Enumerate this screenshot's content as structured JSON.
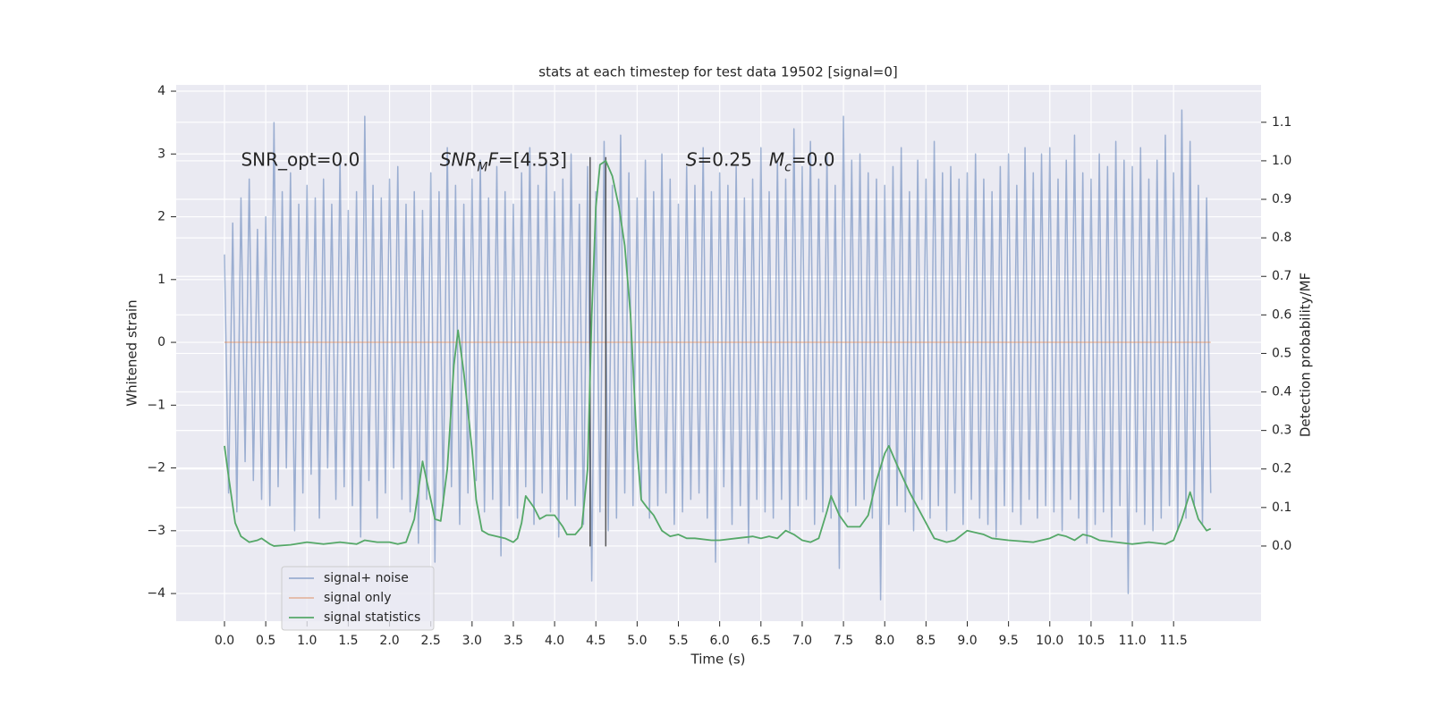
{
  "chart_data": {
    "type": "line",
    "title": "stats at each timestep for test data 19502 [signal=0]",
    "xlabel": "Time (s)",
    "ylabel": "Whitened strain",
    "y2label": "Detection probability/MF",
    "xlim": [
      -0.585,
      12.56
    ],
    "ylim": [
      -4.44,
      4.1
    ],
    "y2lim": [
      -0.195,
      1.197
    ],
    "xticks": [
      {
        "value": 0,
        "label": "0.0"
      },
      0.5,
      {
        "value": 1,
        "label": "1.0"
      },
      1.5,
      {
        "value": 2,
        "label": "2.0"
      },
      2.5,
      {
        "value": 3,
        "label": "3.0"
      },
      3.5,
      {
        "value": 4,
        "label": "4.0"
      },
      4.5,
      {
        "value": 5,
        "label": "5.0"
      },
      5.5,
      {
        "value": 6,
        "label": "6.0"
      },
      6.5,
      {
        "value": 7,
        "label": "7.0"
      },
      7.5,
      {
        "value": 8,
        "label": "8.0"
      },
      8.5,
      {
        "value": 9,
        "label": "9.0"
      },
      9.5,
      {
        "value": 10,
        "label": "10.0"
      },
      10.5,
      {
        "value": 11,
        "label": "11.0"
      },
      11.5
    ],
    "yticks": [
      {
        "value": -4,
        "label": "−4"
      },
      {
        "value": -3,
        "label": "−3"
      },
      {
        "value": -2,
        "label": "−2"
      },
      {
        "value": -1,
        "label": "−1"
      },
      0,
      1,
      2,
      3,
      4
    ],
    "y2ticks": [
      {
        "value": 0,
        "label": "0.0"
      },
      0.1,
      0.2,
      0.3,
      0.4,
      0.5,
      0.6,
      0.7,
      0.8,
      0.9,
      {
        "value": 1,
        "label": "1.0"
      },
      1.1
    ],
    "grid": true,
    "legend": "lower left",
    "series": [
      {
        "name": "signal+ noise",
        "color": "#4c72b0",
        "x": [
          0,
          0.05,
          0.1,
          0.15,
          0.2,
          0.25,
          0.3,
          0.35,
          0.4,
          0.45,
          0.5,
          0.55,
          0.6,
          0.65,
          0.7,
          0.75,
          0.8,
          0.85,
          0.9,
          0.95,
          1,
          1.05,
          1.1,
          1.15,
          1.2,
          1.25,
          1.3,
          1.35,
          1.4,
          1.45,
          1.5,
          1.55,
          1.6,
          1.65,
          1.7,
          1.75,
          1.8,
          1.85,
          1.9,
          1.95,
          2,
          2.05,
          2.1,
          2.15,
          2.2,
          2.25,
          2.3,
          2.35,
          2.4,
          2.45,
          2.5,
          2.55,
          2.6,
          2.65,
          2.7,
          2.75,
          2.8,
          2.85,
          2.9,
          2.95,
          3,
          3.05,
          3.1,
          3.15,
          3.2,
          3.25,
          3.3,
          3.35,
          3.4,
          3.45,
          3.5,
          3.55,
          3.6,
          3.65,
          3.7,
          3.75,
          3.8,
          3.85,
          3.9,
          3.95,
          4,
          4.05,
          4.1,
          4.15,
          4.2,
          4.25,
          4.3,
          4.35,
          4.4,
          4.45,
          4.5,
          4.55,
          4.6,
          4.65,
          4.7,
          4.75,
          4.8,
          4.85,
          4.9,
          4.95,
          5,
          5.05,
          5.1,
          5.15,
          5.2,
          5.25,
          5.3,
          5.35,
          5.4,
          5.45,
          5.5,
          5.55,
          5.6,
          5.65,
          5.7,
          5.75,
          5.8,
          5.85,
          5.9,
          5.95,
          6,
          6.05,
          6.1,
          6.15,
          6.2,
          6.25,
          6.3,
          6.35,
          6.4,
          6.45,
          6.5,
          6.55,
          6.6,
          6.65,
          6.7,
          6.75,
          6.8,
          6.85,
          6.9,
          6.95,
          7,
          7.05,
          7.1,
          7.15,
          7.2,
          7.25,
          7.3,
          7.35,
          7.4,
          7.45,
          7.5,
          7.55,
          7.6,
          7.65,
          7.7,
          7.75,
          7.8,
          7.85,
          7.9,
          7.95,
          8,
          8.05,
          8.1,
          8.15,
          8.2,
          8.25,
          8.3,
          8.35,
          8.4,
          8.45,
          8.5,
          8.55,
          8.6,
          8.65,
          8.7,
          8.75,
          8.8,
          8.85,
          8.9,
          8.95,
          9,
          9.05,
          9.1,
          9.15,
          9.2,
          9.25,
          9.3,
          9.35,
          9.4,
          9.45,
          9.5,
          9.55,
          9.6,
          9.65,
          9.7,
          9.75,
          9.8,
          9.85,
          9.9,
          9.95,
          10,
          10.05,
          10.1,
          10.15,
          10.2,
          10.25,
          10.3,
          10.35,
          10.4,
          10.45,
          10.5,
          10.55,
          10.6,
          10.65,
          10.7,
          10.75,
          10.8,
          10.85,
          10.9,
          10.95,
          11,
          11.05,
          11.1,
          11.15,
          11.2,
          11.25,
          11.3,
          11.35,
          11.4,
          11.45,
          11.5,
          11.55,
          11.6,
          11.65,
          11.7,
          11.75,
          11.8,
          11.85,
          11.9,
          11.95
        ],
        "values": [
          1.4,
          -2.4,
          1.9,
          -2.7,
          2.3,
          -1.9,
          2.6,
          -2.2,
          1.8,
          -2.5,
          2.0,
          -2.6,
          3.5,
          -2.3,
          2.4,
          -2.0,
          2.7,
          -3.0,
          2.2,
          -2.4,
          2.5,
          -2.1,
          2.3,
          -2.8,
          2.6,
          -2.0,
          2.2,
          -2.5,
          2.9,
          -2.3,
          2.1,
          -2.6,
          2.4,
          -3.1,
          3.6,
          -2.2,
          2.5,
          -2.8,
          2.3,
          -2.4,
          2.6,
          -2.0,
          2.8,
          -2.5,
          2.2,
          -2.7,
          2.4,
          -3.2,
          2.1,
          -2.5,
          2.7,
          -3.5,
          2.4,
          -2.6,
          3.1,
          -2.3,
          2.5,
          -2.9,
          2.2,
          -2.4,
          2.6,
          -2.2,
          2.9,
          -2.7,
          2.3,
          -2.5,
          2.8,
          -3.4,
          2.4,
          -2.6,
          2.2,
          -2.8,
          2.7,
          -2.3,
          3.1,
          -2.9,
          2.5,
          -2.4,
          2.9,
          -2.7,
          2.4,
          -3.1,
          2.6,
          -2.5,
          3.0,
          -2.6,
          2.2,
          -2.9,
          2.8,
          -3.8,
          2.4,
          -2.7,
          3.2,
          -3.0,
          2.5,
          -2.8,
          3.3,
          -2.4,
          2.7,
          -2.6,
          2.3,
          -2.5,
          2.9,
          -2.8,
          2.4,
          -2.6,
          3.0,
          -2.4,
          2.6,
          -2.9,
          2.2,
          -2.7,
          2.8,
          -2.5,
          2.5,
          -2.4,
          3.1,
          -2.8,
          2.4,
          -3.5,
          2.7,
          -2.3,
          2.5,
          -2.9,
          2.8,
          -2.6,
          2.3,
          -3.2,
          2.6,
          -2.5,
          3.1,
          -2.7,
          2.4,
          -2.8,
          2.9,
          -2.5,
          2.6,
          -3.0,
          3.4,
          -2.6,
          2.8,
          -2.5,
          3.2,
          -2.9,
          2.6,
          -2.7,
          3.0,
          -2.8,
          2.5,
          -3.6,
          3.6,
          -2.7,
          2.9,
          -2.6,
          3.0,
          -2.5,
          2.7,
          -2.8,
          2.6,
          -4.1,
          2.5,
          -2.9,
          2.8,
          -2.6,
          3.1,
          -2.7,
          2.4,
          -3.0,
          2.9,
          -2.5,
          2.6,
          -2.8,
          3.2,
          -2.6,
          2.7,
          -3.0,
          2.8,
          -2.4,
          2.6,
          -2.9,
          2.7,
          -2.5,
          3.0,
          -2.8,
          2.6,
          -2.9,
          2.4,
          -3.1,
          2.8,
          -2.6,
          3.0,
          -2.7,
          2.5,
          -2.9,
          3.1,
          -2.5,
          2.7,
          -2.8,
          3.0,
          -2.6,
          3.1,
          -2.7,
          2.6,
          -3.0,
          2.9,
          -2.5,
          3.3,
          -2.8,
          2.7,
          -3.2,
          2.6,
          -2.9,
          3.0,
          -2.7,
          2.8,
          -3.1,
          3.2,
          -2.6,
          2.9,
          -4.0,
          2.8,
          -2.7,
          3.1,
          -2.9,
          2.6,
          -3.0,
          2.9,
          -2.8,
          3.3,
          -2.6,
          2.7,
          -3.0,
          3.7,
          -2.8,
          3.2,
          -2.6,
          2.5,
          -2.9,
          2.3,
          -2.4
        ]
      },
      {
        "name": "signal only",
        "color": "#dd8452",
        "x": [
          0,
          11.95
        ],
        "values": [
          0,
          0
        ]
      },
      {
        "name": "signal statistics",
        "color": "#55a868",
        "axis": "y2",
        "x": [
          0,
          0.05,
          0.13,
          0.2,
          0.3,
          0.4,
          0.45,
          0.55,
          0.6,
          0.8,
          1.0,
          1.2,
          1.4,
          1.6,
          1.7,
          1.85,
          2.0,
          2.1,
          2.2,
          2.3,
          2.4,
          2.5,
          2.55,
          2.62,
          2.7,
          2.78,
          2.83,
          2.9,
          3.0,
          3.05,
          3.12,
          3.2,
          3.4,
          3.5,
          3.55,
          3.6,
          3.65,
          3.75,
          3.82,
          3.9,
          4.0,
          4.1,
          4.15,
          4.25,
          4.33,
          4.4,
          4.45,
          4.5,
          4.55,
          4.62,
          4.7,
          4.78,
          4.85,
          4.92,
          5.0,
          5.05,
          5.12,
          5.2,
          5.3,
          5.4,
          5.5,
          5.6,
          5.7,
          5.9,
          6.0,
          6.2,
          6.4,
          6.5,
          6.6,
          6.7,
          6.8,
          6.9,
          7.0,
          7.1,
          7.2,
          7.3,
          7.35,
          7.45,
          7.55,
          7.7,
          7.8,
          7.9,
          8.0,
          8.05,
          8.15,
          8.3,
          8.4,
          8.5,
          8.6,
          8.75,
          8.85,
          9.0,
          9.1,
          9.2,
          9.3,
          9.5,
          9.8,
          10.0,
          10.1,
          10.2,
          10.3,
          10.4,
          10.5,
          10.6,
          10.8,
          11.0,
          11.2,
          11.4,
          11.5,
          11.6,
          11.7,
          11.8,
          11.9,
          11.95
        ],
        "values": [
          0.26,
          0.18,
          0.06,
          0.025,
          0.01,
          0.015,
          0.02,
          0.005,
          0.0,
          0.003,
          0.01,
          0.005,
          0.01,
          0.005,
          0.015,
          0.01,
          0.01,
          0.005,
          0.01,
          0.07,
          0.22,
          0.12,
          0.07,
          0.065,
          0.2,
          0.47,
          0.56,
          0.45,
          0.25,
          0.12,
          0.04,
          0.03,
          0.02,
          0.01,
          0.02,
          0.06,
          0.13,
          0.1,
          0.07,
          0.08,
          0.08,
          0.05,
          0.03,
          0.03,
          0.05,
          0.2,
          0.6,
          0.88,
          0.99,
          1.0,
          0.96,
          0.88,
          0.78,
          0.6,
          0.25,
          0.12,
          0.1,
          0.08,
          0.04,
          0.025,
          0.03,
          0.02,
          0.02,
          0.015,
          0.015,
          0.02,
          0.025,
          0.02,
          0.025,
          0.02,
          0.04,
          0.03,
          0.015,
          0.01,
          0.02,
          0.09,
          0.13,
          0.08,
          0.05,
          0.05,
          0.08,
          0.17,
          0.24,
          0.26,
          0.21,
          0.14,
          0.1,
          0.06,
          0.02,
          0.01,
          0.015,
          0.04,
          0.035,
          0.03,
          0.02,
          0.015,
          0.01,
          0.02,
          0.03,
          0.025,
          0.015,
          0.03,
          0.025,
          0.015,
          0.01,
          0.005,
          0.01,
          0.005,
          0.015,
          0.07,
          0.14,
          0.07,
          0.04,
          0.045
        ]
      }
    ],
    "vlines": {
      "x": [
        4.43,
        4.62
      ],
      "ymin": -3.25,
      "ymax": 2.95,
      "color": "#333333"
    },
    "annotations": [
      {
        "x": 0.2,
        "y": 2.9,
        "parts": [
          {
            "text": "SNR_opt=0.0"
          }
        ]
      },
      {
        "x": 2.61,
        "y": 2.9,
        "parts": [
          {
            "text": "SNR",
            "italic": true
          },
          {
            "text": "M",
            "italic": true,
            "sub": true
          },
          {
            "text": "F",
            "italic": true
          },
          {
            "text": "=[4.53]"
          }
        ]
      },
      {
        "x": 5.59,
        "y": 2.9,
        "parts": [
          {
            "text": "S",
            "italic": true
          },
          {
            "text": "=0.25   "
          },
          {
            "text": "M",
            "italic": true
          },
          {
            "text": "c",
            "italic": true,
            "sub": true
          },
          {
            "text": "=0.0"
          }
        ]
      }
    ]
  }
}
